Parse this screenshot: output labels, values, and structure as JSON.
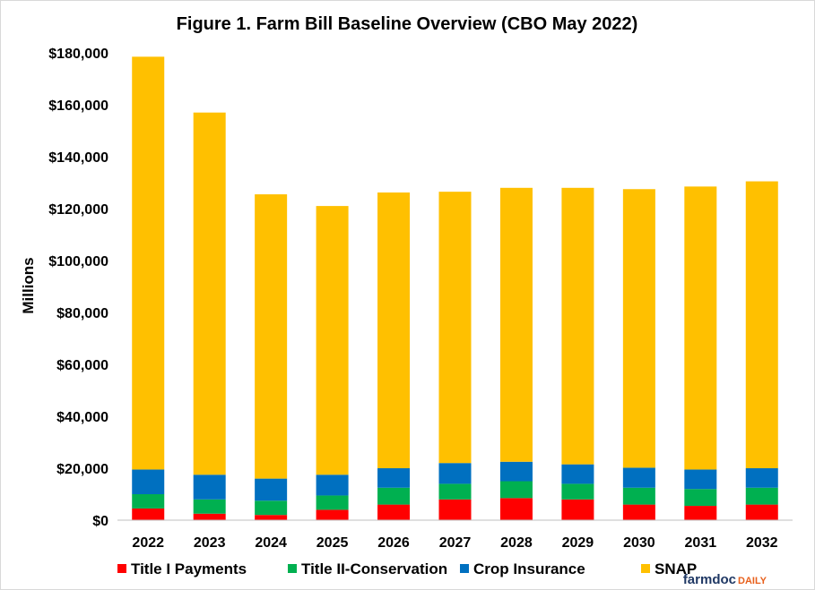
{
  "chart_data": {
    "type": "bar",
    "stacked": true,
    "title": "Figure  1. Farm Bill  Baseline  Overview (CBO May  2022)",
    "ylabel": "Millions",
    "xlabel": "",
    "ylim": [
      0,
      180000
    ],
    "yticks": [
      0,
      20000,
      40000,
      60000,
      80000,
      100000,
      120000,
      140000,
      160000,
      180000
    ],
    "ytick_labels": [
      "$0",
      "$20,000",
      "$40,000",
      "$60,000",
      "$80,000",
      "$100,000",
      "$120,000",
      "$140,000",
      "$160,000",
      "$180,000"
    ],
    "grid": false,
    "legend_position": "bottom",
    "categories": [
      "2022",
      "2023",
      "2024",
      "2025",
      "2026",
      "2027",
      "2028",
      "2029",
      "2030",
      "2031",
      "2032"
    ],
    "series": [
      {
        "name": "Title I Payments",
        "color": "#ff0000",
        "values": [
          4500,
          2500,
          2000,
          4000,
          6000,
          8000,
          8500,
          8000,
          6000,
          5500,
          6000
        ]
      },
      {
        "name": "Title II-Conservation",
        "color": "#00b050",
        "values": [
          5500,
          5500,
          5500,
          5500,
          6500,
          6000,
          6500,
          6000,
          6500,
          6500,
          6500
        ]
      },
      {
        "name": "Crop Insurance",
        "color": "#0070c0",
        "values": [
          9500,
          9500,
          8500,
          8000,
          7500,
          8000,
          7500,
          7500,
          7700,
          7500,
          7500
        ]
      },
      {
        "name": "SNAP",
        "color": "#ffc000",
        "values": [
          159000,
          139500,
          109500,
          103500,
          106200,
          104500,
          105500,
          106500,
          107300,
          109000,
          110500
        ]
      }
    ]
  },
  "branding": {
    "farmdoc": "farmdoc",
    "daily": "DAILY"
  }
}
